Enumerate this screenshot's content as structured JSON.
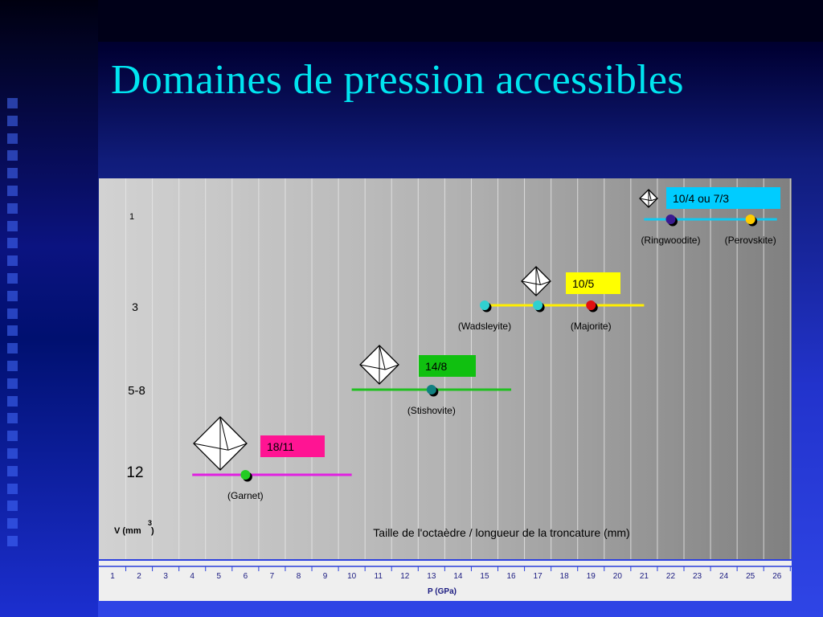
{
  "slide": {
    "title": "Domaines de pression accessibles",
    "colors": {
      "title": "#00e5f0",
      "background_dark": "#000033",
      "background_bright": "#2f45e6"
    }
  },
  "chart_data": {
    "type": "range",
    "x_axis": {
      "label": "P (GPa)",
      "range": [
        1,
        26
      ],
      "ticks": [
        "1",
        "2",
        "3",
        "4",
        "5",
        "6",
        "7",
        "8",
        "9",
        "10",
        "11",
        "12",
        "13",
        "14",
        "15",
        "16",
        "17",
        "18",
        "19",
        "20",
        "21",
        "22",
        "23",
        "24",
        "25",
        "26"
      ]
    },
    "y_axis": {
      "label": "V (mm",
      "label_superscript": "3",
      "label_close": ")",
      "categories": [
        "1",
        "3",
        "5-8",
        "12"
      ]
    },
    "annotation": "Taille de l'octaèdre / longueur de la troncature (mm)",
    "series": [
      {
        "volume": "12",
        "assembly": "18/11",
        "label_color": "#ff1493",
        "line_color": "#e020e0",
        "range": [
          4,
          10
        ],
        "points": [
          {
            "label": "(Garnet)",
            "x": 6,
            "color": "#22cc22"
          }
        ]
      },
      {
        "volume": "5-8",
        "assembly": "14/8",
        "label_color": "#10c010",
        "line_color": "#20c020",
        "range": [
          10,
          16
        ],
        "points": [
          {
            "label": "(Stishovite)",
            "x": 13,
            "color": "#108080"
          }
        ]
      },
      {
        "volume": "3",
        "assembly": "10/5",
        "label_color": "#ffff00",
        "line_color": "#ffee00",
        "range": [
          15,
          21
        ],
        "points": [
          {
            "label": "(Wadsleyite)",
            "x": 15,
            "color": "#30d0d0"
          },
          {
            "label": "",
            "x": 17,
            "color": "#30d0d0"
          },
          {
            "label": "(Majorite)",
            "x": 19,
            "color": "#e01010"
          }
        ]
      },
      {
        "volume": "1",
        "assembly": "10/4 ou 7/3",
        "label_color": "#00ccff",
        "line_color": "#10c8f0",
        "range": [
          21,
          26
        ],
        "points": [
          {
            "label": "(Ringwoodite)",
            "x": 22,
            "color": "#3a1a90"
          },
          {
            "label": "(Perovskite)",
            "x": 25,
            "color": "#ffcc00"
          }
        ]
      }
    ],
    "grid": "vertical lines at each GPa",
    "legend": "none"
  }
}
